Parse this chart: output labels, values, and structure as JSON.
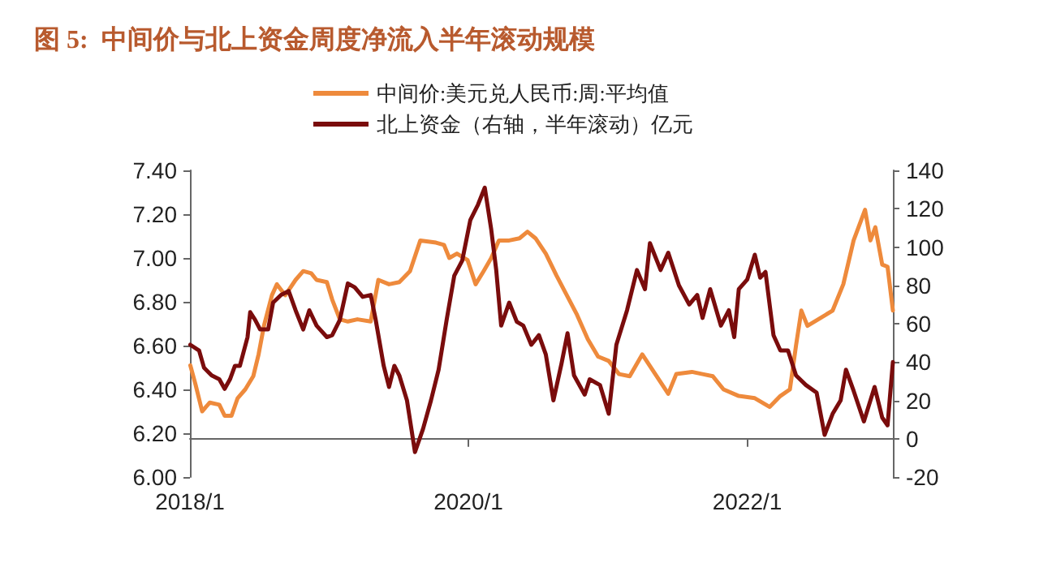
{
  "chart_data": {
    "type": "line",
    "title": "图 5:  中间价与北上资金周度净流入半年滚动规模",
    "xlim": [
      "2018-01-01",
      "2023-01-18"
    ],
    "xticks": [
      {
        "value": "2018-01-01",
        "label": "2018/1"
      },
      {
        "value": "2020-01-01",
        "label": "2020/1"
      },
      {
        "value": "2022-01-01",
        "label": "2022/1"
      }
    ],
    "ylim": [
      6.0,
      7.4
    ],
    "yticks": [
      {
        "value": 6.0,
        "label": "6.00"
      },
      {
        "value": 6.2,
        "label": "6.20"
      },
      {
        "value": 6.4,
        "label": "6.40"
      },
      {
        "value": 6.6,
        "label": "6.60"
      },
      {
        "value": 6.8,
        "label": "6.80"
      },
      {
        "value": 7.0,
        "label": "7.00"
      },
      {
        "value": 7.2,
        "label": "7.20"
      },
      {
        "value": 7.4,
        "label": "7.40"
      }
    ],
    "y2lim": [
      -20,
      140
    ],
    "y2ticks": [
      -20,
      0,
      20,
      40,
      60,
      80,
      100,
      120,
      140
    ],
    "grid": false,
    "legend": "top",
    "marker": "none",
    "line_style": "solid",
    "series": [
      {
        "name": "中间价:美元兑人民币:周:平均值",
        "color": "#ee8a3c",
        "x": [
          "2018-01-02",
          "2018-01-16",
          "2018-02-02",
          "2018-02-22",
          "2018-03-19",
          "2018-04-02",
          "2018-04-20",
          "2018-05-06",
          "2018-05-26",
          "2018-06-16",
          "2018-06-30",
          "2018-07-14",
          "2018-08-04",
          "2018-08-17",
          "2018-09-08",
          "2018-10-05",
          "2018-10-25",
          "2018-11-15",
          "2018-11-29",
          "2018-12-26",
          "2019-01-09",
          "2019-01-29",
          "2019-02-19",
          "2019-03-16",
          "2019-04-20",
          "2019-05-10",
          "2019-06-07",
          "2019-07-04",
          "2019-08-01",
          "2019-08-28",
          "2019-10-08",
          "2019-10-29",
          "2019-11-12",
          "2019-12-02",
          "2019-12-30",
          "2020-01-20",
          "2020-02-10",
          "2020-03-01",
          "2020-03-21",
          "2020-04-17",
          "2020-05-14",
          "2020-06-04",
          "2020-06-25",
          "2020-07-22",
          "2020-08-19",
          "2020-09-15",
          "2020-10-12",
          "2020-11-09",
          "2020-12-06",
          "2021-01-03",
          "2021-01-30",
          "2021-02-27",
          "2021-04-01",
          "2021-05-05",
          "2021-06-08",
          "2021-06-29",
          "2021-08-09",
          "2021-09-06",
          "2021-10-03",
          "2021-10-31",
          "2021-12-10",
          "2022-01-21",
          "2022-03-01",
          "2022-03-29",
          "2022-04-23",
          "2022-05-09",
          "2022-05-23",
          "2022-06-08",
          "2022-07-16",
          "2022-08-13",
          "2022-09-10",
          "2022-10-07",
          "2022-11-06",
          "2022-11-20",
          "2022-12-03",
          "2022-12-21",
          "2023-01-04",
          "2023-01-18"
        ],
        "values": [
          6.51,
          6.42,
          6.3,
          6.34,
          6.33,
          6.28,
          6.28,
          6.36,
          6.4,
          6.46,
          6.56,
          6.69,
          6.83,
          6.88,
          6.83,
          6.9,
          6.94,
          6.93,
          6.9,
          6.89,
          6.81,
          6.72,
          6.71,
          6.72,
          6.71,
          6.9,
          6.88,
          6.89,
          6.94,
          7.08,
          7.07,
          7.06,
          7.0,
          7.02,
          6.99,
          6.88,
          6.94,
          7.0,
          7.08,
          7.08,
          7.09,
          7.12,
          7.09,
          7.02,
          6.92,
          6.83,
          6.74,
          6.63,
          6.55,
          6.53,
          6.47,
          6.46,
          6.56,
          6.47,
          6.38,
          6.47,
          6.48,
          6.47,
          6.46,
          6.4,
          6.37,
          6.36,
          6.32,
          6.37,
          6.4,
          6.6,
          6.76,
          6.69,
          6.73,
          6.76,
          6.88,
          7.08,
          7.22,
          7.08,
          7.14,
          6.97,
          6.96,
          6.76
        ]
      },
      {
        "name": "北上资金（右轴，半年滚动）亿元",
        "color": "#7a0c0c",
        "axis": "y2",
        "x": [
          "2018-01-02",
          "2018-01-25",
          "2018-02-07",
          "2018-02-27",
          "2018-03-19",
          "2018-04-02",
          "2018-04-16",
          "2018-04-29",
          "2018-05-12",
          "2018-06-01",
          "2018-06-08",
          "2018-06-21",
          "2018-07-04",
          "2018-07-25",
          "2018-08-07",
          "2018-08-28",
          "2018-09-17",
          "2018-10-05",
          "2018-10-25",
          "2018-11-10",
          "2018-11-29",
          "2018-12-26",
          "2019-01-09",
          "2019-01-29",
          "2019-02-19",
          "2019-03-09",
          "2019-03-30",
          "2019-04-20",
          "2019-05-03",
          "2019-05-24",
          "2019-06-07",
          "2019-06-21",
          "2019-07-04",
          "2019-07-24",
          "2019-08-14",
          "2019-09-04",
          "2019-09-25",
          "2019-10-15",
          "2019-11-05",
          "2019-11-25",
          "2019-12-16",
          "2020-01-06",
          "2020-01-26",
          "2020-02-13",
          "2020-03-01",
          "2020-03-14",
          "2020-03-27",
          "2020-04-17",
          "2020-05-07",
          "2020-05-24",
          "2020-06-14",
          "2020-07-04",
          "2020-07-22",
          "2020-08-11",
          "2020-09-01",
          "2020-09-17",
          "2020-10-04",
          "2020-11-01",
          "2020-11-14",
          "2020-12-11",
          "2021-01-03",
          "2021-01-23",
          "2021-02-20",
          "2021-03-18",
          "2021-04-08",
          "2021-04-21",
          "2021-05-19",
          "2021-06-08",
          "2021-07-06",
          "2021-08-02",
          "2021-08-23",
          "2021-09-06",
          "2021-09-26",
          "2021-10-24",
          "2021-11-14",
          "2021-11-28",
          "2021-12-10",
          "2022-01-01",
          "2022-01-21",
          "2022-02-04",
          "2022-02-18",
          "2022-03-11",
          "2022-03-29",
          "2022-04-18",
          "2022-05-09",
          "2022-06-04",
          "2022-07-02",
          "2022-07-23",
          "2022-08-13",
          "2022-09-03",
          "2022-09-17",
          "2022-10-07",
          "2022-11-03",
          "2022-12-01",
          "2022-12-21",
          "2023-01-04",
          "2023-01-18"
        ],
        "values": [
          49,
          46,
          37,
          33,
          31,
          26,
          31,
          38,
          38,
          53,
          66,
          62,
          57,
          57,
          71,
          75,
          77,
          67,
          57,
          67,
          59,
          53,
          54,
          62,
          81,
          79,
          74,
          75,
          62,
          38,
          27,
          38,
          33,
          20,
          -7,
          5,
          20,
          36,
          62,
          85,
          93,
          114,
          122,
          131,
          109,
          88,
          59,
          71,
          61,
          59,
          49,
          54,
          44,
          20,
          39,
          55,
          33,
          23,
          31,
          28,
          13,
          49,
          67,
          88,
          78,
          102,
          88,
          97,
          80,
          70,
          75,
          63,
          78,
          59,
          67,
          53,
          78,
          83,
          96,
          84,
          87,
          54,
          46,
          46,
          33,
          28,
          24,
          2,
          13,
          20,
          36,
          25,
          9,
          27,
          11,
          7,
          40
        ]
      }
    ]
  }
}
